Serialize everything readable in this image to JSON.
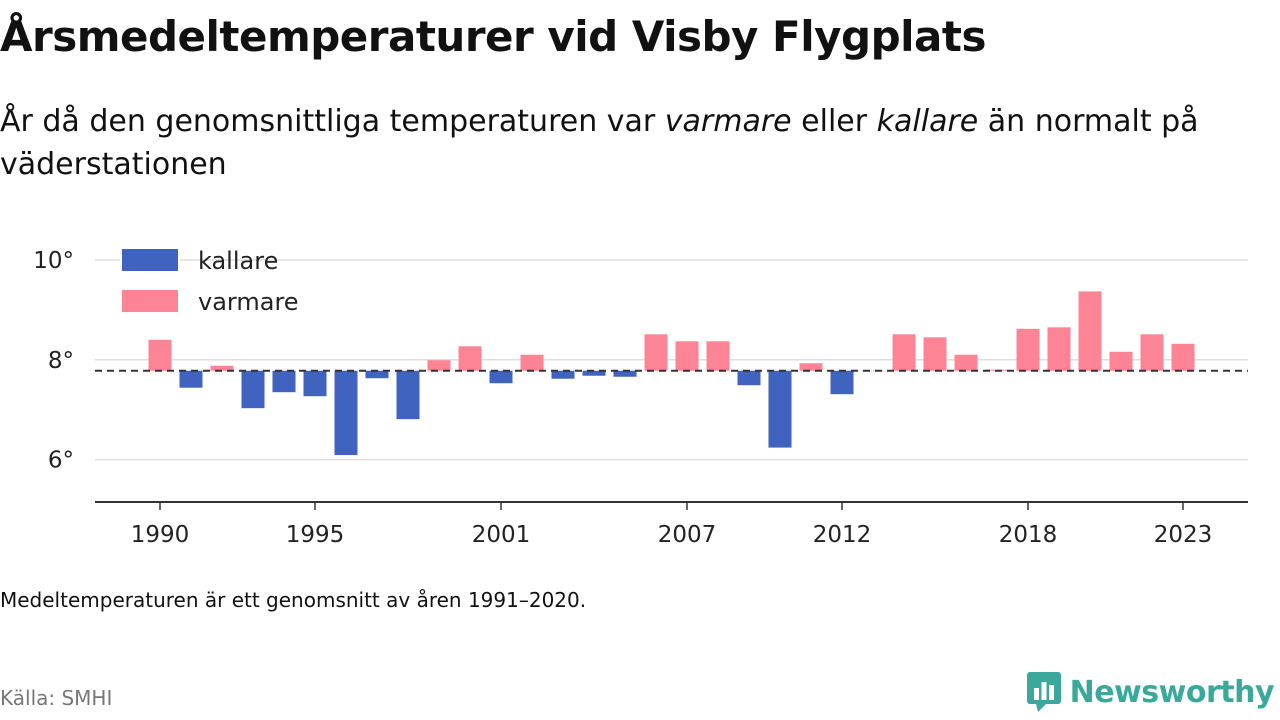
{
  "title": "Årsmedeltemperaturer vid Visby Flygplats",
  "subtitle": {
    "part1": "År då den genomsnittliga temperaturen var ",
    "warmer": "varmare",
    "part2": " eller ",
    "colder": "kallare",
    "part3": " än normalt på väderstationen"
  },
  "note": "Medeltemperaturen är ett genomsnitt av åren 1991–2020.",
  "source": "Källa: SMHI",
  "brand": "Newsworthy",
  "colors": {
    "colder": "#4163c0",
    "warmer": "#fd8494",
    "brand": "#3aa89a"
  },
  "chart_data": {
    "type": "bar",
    "baseline": 7.78,
    "ylim": [
      5.15,
      10.6
    ],
    "yticks": [
      6,
      8,
      10
    ],
    "ytick_labels": [
      "6°",
      "8°",
      "10°"
    ],
    "xticks": [
      1990,
      1995,
      2001,
      2007,
      2012,
      2018,
      2023
    ],
    "legend": {
      "position": "top-left",
      "colder_label": "kallare",
      "warmer_label": "varmare"
    },
    "grid": true,
    "categories": [
      1990,
      1991,
      1992,
      1993,
      1994,
      1995,
      1996,
      1997,
      1998,
      1999,
      2000,
      2001,
      2002,
      2003,
      2004,
      2005,
      2006,
      2007,
      2008,
      2009,
      2010,
      2011,
      2012,
      2013,
      2014,
      2015,
      2016,
      2017,
      2018,
      2019,
      2020,
      2021,
      2022,
      2023
    ],
    "values": [
      8.4,
      7.44,
      7.88,
      7.03,
      7.35,
      7.27,
      6.09,
      7.63,
      6.81,
      7.99,
      8.27,
      7.53,
      8.1,
      7.62,
      7.68,
      7.66,
      8.51,
      8.37,
      8.37,
      7.49,
      6.24,
      7.93,
      7.31,
      7.78,
      8.51,
      8.45,
      8.1,
      7.8,
      8.62,
      8.65,
      9.37,
      8.16,
      8.51,
      8.32
    ]
  }
}
